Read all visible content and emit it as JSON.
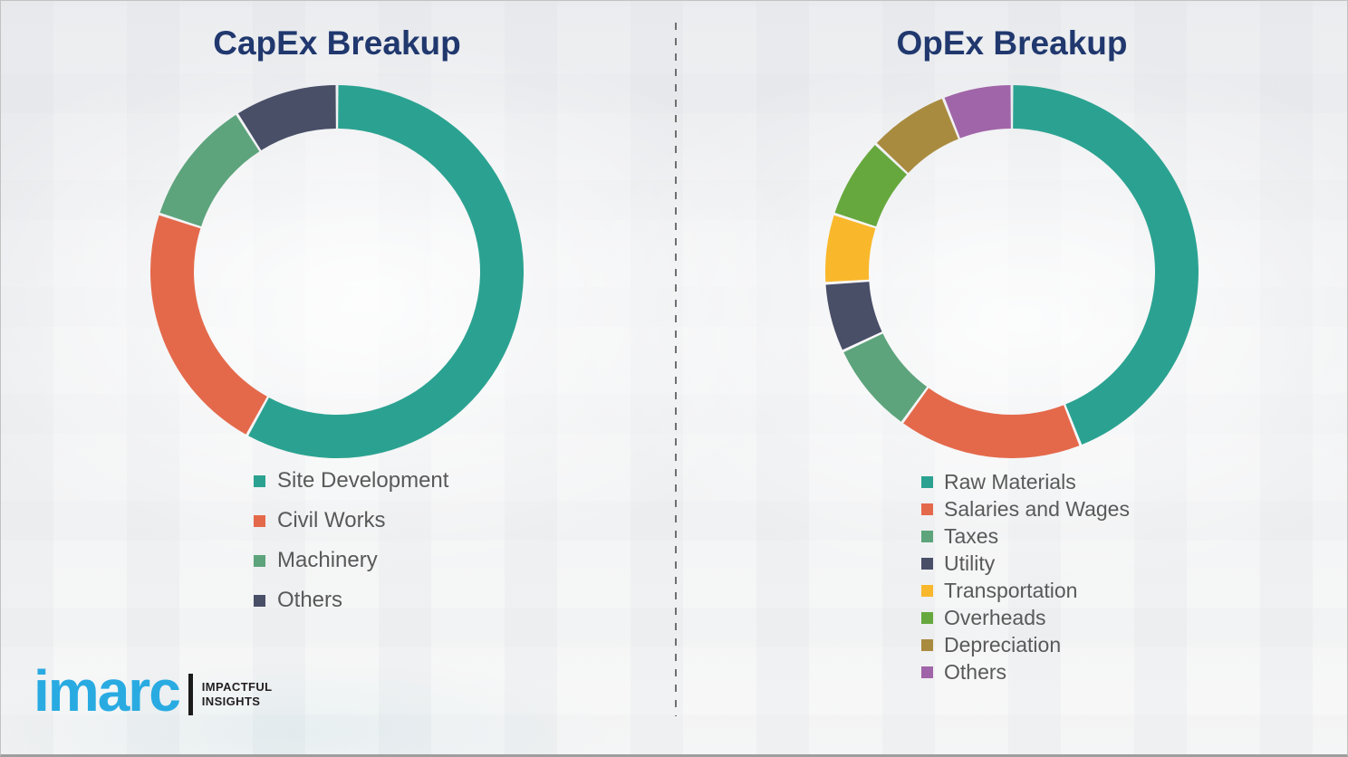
{
  "colors": {
    "title": "#20386e",
    "legend_text": "#595959",
    "divider": "#6f6f6f",
    "brand_blue": "#29abe2"
  },
  "chart_data": [
    {
      "type": "pie",
      "subtype": "donut",
      "title": "CapEx Breakup",
      "categories": [
        "Site Development",
        "Civil Works",
        "Machinery",
        "Others"
      ],
      "values": [
        58,
        22,
        11,
        9
      ],
      "units": "%",
      "values_estimated_from_arcs": true,
      "colors": [
        "#2ba291",
        "#e4694b",
        "#5da47c",
        "#4a4f68"
      ],
      "start_angle_deg": 0,
      "direction": "clockwise",
      "legend_position": "below-chart-left"
    },
    {
      "type": "pie",
      "subtype": "donut",
      "title": "OpEx Breakup",
      "categories": [
        "Raw Materials",
        "Salaries and Wages",
        "Taxes",
        "Utility",
        "Transportation",
        "Overheads",
        "Depreciation",
        "Others"
      ],
      "values": [
        44,
        16,
        8,
        6,
        6,
        7,
        7,
        6
      ],
      "units": "%",
      "values_estimated_from_arcs": true,
      "colors": [
        "#2ba291",
        "#e4694b",
        "#5da47c",
        "#4a4f68",
        "#f9b82b",
        "#66a83d",
        "#a98b3f",
        "#a065a8"
      ],
      "start_angle_deg": 0,
      "direction": "clockwise",
      "legend_position": "below-chart-left"
    }
  ],
  "logo": {
    "brand": "imarc",
    "tagline_line1": "IMPACTFUL",
    "tagline_line2": "INSIGHTS"
  }
}
